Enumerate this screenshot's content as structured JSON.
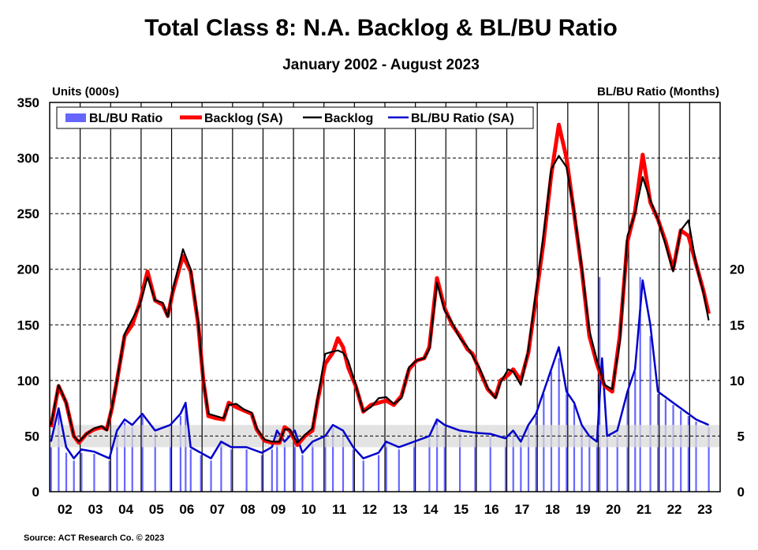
{
  "chart_data": {
    "type": "line",
    "title": "Total Class 8: N.A. Backlog & BL/BU Ratio",
    "subtitle": "January 2002 - August 2023",
    "ylabel_left": "Units (000s)",
    "ylabel_right": "BL/BU Ratio (Months)",
    "source": "Source: ACT Research Co. © 2023",
    "ylim_left": [
      0,
      350
    ],
    "ylim_right": [
      0,
      35
    ],
    "yticks_left": [
      "0",
      "50",
      "100",
      "150",
      "200",
      "250",
      "300",
      "350"
    ],
    "yticks_right": [
      "0",
      "5",
      "10",
      "15",
      "20"
    ],
    "xticks": [
      "02",
      "03",
      "04",
      "05",
      "06",
      "07",
      "08",
      "09",
      "10",
      "11",
      "12",
      "13",
      "14",
      "15",
      "16",
      "17",
      "18",
      "19",
      "20",
      "21",
      "22",
      "23"
    ],
    "xlim": [
      "2002-01",
      "2023-12"
    ],
    "grid": "horizontal dashed, vertical solid at year boundaries",
    "shaded_band_ratio": [
      4,
      6
    ],
    "legend": {
      "placement": "top-left",
      "entries": [
        "BL/BU Ratio",
        "Backlog (SA)",
        "Backlog",
        "BL/BU Ratio (SA)"
      ]
    },
    "colors": {
      "bars": "#6666FF",
      "backlog_sa": "#FF0000",
      "backlog": "#000000",
      "ratio_sa": "#0000CC",
      "band": "#D9D9D9"
    },
    "backlog_sa": {
      "name": "Backlog (SA)",
      "axis": "left",
      "dates": [
        "2002-01",
        "2002-04",
        "2002-07",
        "2002-10",
        "2002-12",
        "2003-03",
        "2003-06",
        "2003-09",
        "2003-11",
        "2004-01",
        "2004-03",
        "2004-06",
        "2004-09",
        "2004-12",
        "2005-03",
        "2005-06",
        "2005-09",
        "2005-11",
        "2006-01",
        "2006-05",
        "2006-08",
        "2006-11",
        "2007-01",
        "2007-03",
        "2007-06",
        "2007-09",
        "2007-11",
        "2008-02",
        "2008-05",
        "2008-08",
        "2008-10",
        "2009-01",
        "2009-04",
        "2009-07",
        "2009-09",
        "2009-11",
        "2010-02",
        "2010-05",
        "2010-08",
        "2010-10",
        "2011-01",
        "2011-04",
        "2011-06",
        "2011-08",
        "2011-10",
        "2012-01",
        "2012-04",
        "2012-07",
        "2012-10",
        "2013-01",
        "2013-04",
        "2013-07",
        "2013-10",
        "2014-01",
        "2014-04",
        "2014-06",
        "2014-09",
        "2014-12",
        "2015-03",
        "2015-06",
        "2015-09",
        "2015-11",
        "2016-02",
        "2016-05",
        "2016-08",
        "2016-10",
        "2017-01",
        "2017-03",
        "2017-06",
        "2017-09",
        "2017-12",
        "2018-03",
        "2018-06",
        "2018-09",
        "2018-12",
        "2019-03",
        "2019-06",
        "2019-09",
        "2019-12",
        "2020-03",
        "2020-06",
        "2020-09",
        "2020-12",
        "2021-03",
        "2021-06",
        "2021-09",
        "2021-12",
        "2022-03",
        "2022-06",
        "2022-09",
        "2022-12",
        "2023-03",
        "2023-06",
        "2023-08"
      ],
      "values": [
        58,
        95,
        80,
        50,
        44,
        52,
        56,
        58,
        56,
        75,
        100,
        140,
        150,
        170,
        198,
        172,
        168,
        158,
        180,
        212,
        198,
        150,
        100,
        68,
        66,
        65,
        80,
        76,
        73,
        70,
        56,
        46,
        44,
        44,
        58,
        55,
        42,
        50,
        55,
        82,
        115,
        125,
        138,
        130,
        112,
        95,
        72,
        78,
        80,
        82,
        78,
        86,
        110,
        118,
        120,
        130,
        192,
        165,
        150,
        140,
        128,
        124,
        108,
        92,
        85,
        100,
        105,
        110,
        100,
        125,
        175,
        225,
        285,
        330,
        300,
        250,
        200,
        140,
        115,
        95,
        90,
        140,
        225,
        252,
        303,
        260,
        245,
        225,
        200,
        235,
        230,
        205,
        180,
        160
      ]
    },
    "backlog": {
      "name": "Backlog",
      "axis": "left",
      "dates": [
        "2002-01",
        "2002-04",
        "2002-07",
        "2002-10",
        "2002-12",
        "2003-03",
        "2003-06",
        "2003-09",
        "2003-11",
        "2004-01",
        "2004-03",
        "2004-06",
        "2004-09",
        "2004-12",
        "2005-03",
        "2005-06",
        "2005-09",
        "2005-11",
        "2006-01",
        "2006-05",
        "2006-08",
        "2006-11",
        "2007-01",
        "2007-03",
        "2007-06",
        "2007-09",
        "2007-11",
        "2008-02",
        "2008-05",
        "2008-08",
        "2008-10",
        "2009-01",
        "2009-04",
        "2009-07",
        "2009-09",
        "2009-11",
        "2010-02",
        "2010-05",
        "2010-08",
        "2010-10",
        "2011-01",
        "2011-04",
        "2011-06",
        "2011-08",
        "2011-10",
        "2012-01",
        "2012-04",
        "2012-07",
        "2012-10",
        "2013-01",
        "2013-04",
        "2013-07",
        "2013-10",
        "2014-01",
        "2014-04",
        "2014-06",
        "2014-09",
        "2014-12",
        "2015-03",
        "2015-06",
        "2015-09",
        "2015-11",
        "2016-02",
        "2016-05",
        "2016-08",
        "2016-10",
        "2017-01",
        "2017-03",
        "2017-06",
        "2017-09",
        "2017-12",
        "2018-03",
        "2018-06",
        "2018-09",
        "2018-12",
        "2019-03",
        "2019-06",
        "2019-09",
        "2019-12",
        "2020-03",
        "2020-06",
        "2020-09",
        "2020-12",
        "2021-03",
        "2021-06",
        "2021-09",
        "2021-12",
        "2022-03",
        "2022-06",
        "2022-09",
        "2022-12",
        "2023-03",
        "2023-06",
        "2023-08"
      ],
      "values": [
        60,
        96,
        80,
        50,
        45,
        52,
        57,
        59,
        55,
        76,
        100,
        142,
        155,
        168,
        193,
        172,
        170,
        157,
        182,
        218,
        200,
        152,
        100,
        70,
        68,
        66,
        78,
        79,
        74,
        71,
        57,
        47,
        45,
        45,
        56,
        56,
        44,
        51,
        57,
        84,
        124,
        126,
        127,
        125,
        118,
        96,
        72,
        76,
        84,
        85,
        79,
        84,
        112,
        118,
        120,
        128,
        188,
        163,
        152,
        138,
        130,
        122,
        110,
        93,
        84,
        98,
        110,
        108,
        96,
        128,
        180,
        232,
        290,
        302,
        292,
        252,
        202,
        145,
        118,
        96,
        92,
        135,
        230,
        250,
        283,
        262,
        245,
        222,
        198,
        235,
        244,
        205,
        178,
        154
      ]
    },
    "ratio_sa": {
      "name": "BL/BU Ratio (SA)",
      "axis": "right",
      "dates": [
        "2002-01",
        "2002-04",
        "2002-07",
        "2002-10",
        "2003-01",
        "2003-06",
        "2003-12",
        "2004-03",
        "2004-06",
        "2004-09",
        "2005-01",
        "2005-06",
        "2005-12",
        "2006-04",
        "2006-06",
        "2006-08",
        "2006-12",
        "2007-04",
        "2007-08",
        "2007-12",
        "2008-06",
        "2008-12",
        "2009-04",
        "2009-06",
        "2009-09",
        "2010-01",
        "2010-04",
        "2010-08",
        "2011-01",
        "2011-04",
        "2011-08",
        "2011-12",
        "2012-04",
        "2012-10",
        "2013-01",
        "2013-06",
        "2013-12",
        "2014-06",
        "2014-09",
        "2014-12",
        "2015-06",
        "2015-12",
        "2016-06",
        "2016-12",
        "2017-03",
        "2017-06",
        "2017-09",
        "2017-12",
        "2018-03",
        "2018-06",
        "2018-09",
        "2018-12",
        "2019-03",
        "2019-06",
        "2019-09",
        "2019-12",
        "2020-02",
        "2020-04",
        "2020-08",
        "2020-12",
        "2021-03",
        "2021-06",
        "2021-09",
        "2021-12",
        "2022-03",
        "2022-06",
        "2022-09",
        "2022-12",
        "2023-03",
        "2023-08"
      ],
      "values": [
        4.5,
        7.5,
        4.0,
        3.0,
        3.8,
        3.6,
        3.0,
        5.5,
        6.5,
        6.0,
        7.0,
        5.5,
        6.0,
        7.0,
        8.0,
        4.0,
        3.5,
        3.0,
        4.5,
        4.0,
        4.0,
        3.5,
        4.0,
        5.5,
        4.5,
        5.5,
        3.5,
        4.5,
        5.0,
        6.0,
        5.5,
        4.0,
        3.0,
        3.5,
        4.5,
        4.0,
        4.5,
        5.0,
        6.5,
        6.0,
        5.5,
        5.3,
        5.2,
        4.8,
        5.5,
        4.5,
        6.0,
        7.0,
        9.0,
        11.0,
        13.0,
        9.0,
        8.0,
        6.0,
        5.0,
        4.5,
        12.0,
        5.0,
        5.5,
        9.0,
        11.0,
        19.0,
        15.0,
        9.0,
        8.5,
        8.0,
        7.5,
        7.0,
        6.5,
        6.0
      ]
    },
    "ratio_bars": {
      "name": "BL/BU Ratio",
      "axis": "right",
      "dates": [
        "2002-01",
        "2002-04",
        "2002-07",
        "2002-10",
        "2003-01",
        "2003-06",
        "2003-12",
        "2004-03",
        "2004-06",
        "2004-09",
        "2005-01",
        "2005-06",
        "2005-12",
        "2006-04",
        "2006-06",
        "2006-08",
        "2006-12",
        "2007-04",
        "2007-08",
        "2007-12",
        "2008-06",
        "2008-12",
        "2009-04",
        "2009-06",
        "2009-09",
        "2010-01",
        "2010-04",
        "2010-08",
        "2011-01",
        "2011-04",
        "2011-08",
        "2011-12",
        "2012-04",
        "2012-10",
        "2013-01",
        "2013-06",
        "2013-12",
        "2014-06",
        "2014-09",
        "2014-12",
        "2015-06",
        "2015-12",
        "2016-06",
        "2016-12",
        "2017-03",
        "2017-06",
        "2017-09",
        "2017-12",
        "2018-03",
        "2018-06",
        "2018-09",
        "2018-12",
        "2019-03",
        "2019-06",
        "2019-09",
        "2019-12",
        "2020-01",
        "2020-04",
        "2020-08",
        "2020-12",
        "2021-03",
        "2021-05",
        "2021-09",
        "2021-12",
        "2022-03",
        "2022-06",
        "2022-09",
        "2022-12",
        "2023-03",
        "2023-08"
      ],
      "values": [
        4.0,
        7.0,
        3.5,
        2.8,
        3.5,
        3.4,
        2.8,
        5.2,
        6.2,
        5.8,
        6.8,
        5.3,
        5.8,
        6.8,
        7.8,
        3.8,
        3.3,
        2.8,
        4.3,
        3.8,
        3.8,
        3.3,
        3.8,
        5.3,
        4.3,
        5.3,
        3.3,
        4.3,
        4.8,
        5.8,
        5.3,
        3.8,
        2.8,
        3.3,
        4.3,
        3.8,
        4.3,
        4.8,
        6.3,
        5.8,
        5.3,
        5.1,
        5.0,
        4.6,
        5.3,
        4.3,
        5.8,
        6.8,
        8.8,
        10.8,
        12.0,
        8.8,
        7.8,
        5.8,
        4.8,
        4.3,
        19.3,
        4.8,
        5.3,
        8.8,
        10.8,
        19.3,
        14.0,
        8.8,
        8.3,
        7.8,
        7.3,
        6.8,
        6.3,
        5.8
      ]
    }
  }
}
